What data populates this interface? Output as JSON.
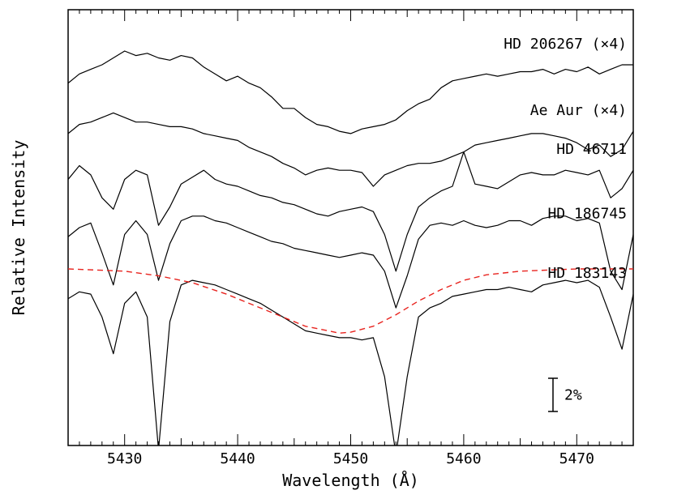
{
  "chart_data": {
    "type": "line",
    "xlabel": "Wavelength (Å)",
    "ylabel": "Relative Intensity",
    "xlim": [
      5425,
      5475
    ],
    "x_ticks": [
      5430,
      5440,
      5450,
      5460,
      5470
    ],
    "scale_bar_label": "2%",
    "series": [
      {
        "name": "HD 206267 (×4)",
        "color": "#000000",
        "points": [
          [
            5425,
            0.89
          ],
          [
            5426,
            0.91
          ],
          [
            5427,
            0.92
          ],
          [
            5428,
            0.93
          ],
          [
            5429,
            0.945
          ],
          [
            5430,
            0.96
          ],
          [
            5431,
            0.95
          ],
          [
            5432,
            0.955
          ],
          [
            5433,
            0.945
          ],
          [
            5434,
            0.94
          ],
          [
            5435,
            0.95
          ],
          [
            5436,
            0.945
          ],
          [
            5437,
            0.925
          ],
          [
            5438,
            0.91
          ],
          [
            5439,
            0.895
          ],
          [
            5440,
            0.905
          ],
          [
            5441,
            0.89
          ],
          [
            5442,
            0.88
          ],
          [
            5443,
            0.86
          ],
          [
            5444,
            0.835
          ],
          [
            5445,
            0.835
          ],
          [
            5446,
            0.815
          ],
          [
            5447,
            0.8
          ],
          [
            5448,
            0.795
          ],
          [
            5449,
            0.785
          ],
          [
            5450,
            0.78
          ],
          [
            5451,
            0.79
          ],
          [
            5452,
            0.795
          ],
          [
            5453,
            0.8
          ],
          [
            5454,
            0.81
          ],
          [
            5455,
            0.83
          ],
          [
            5456,
            0.845
          ],
          [
            5457,
            0.855
          ],
          [
            5458,
            0.88
          ],
          [
            5459,
            0.895
          ],
          [
            5460,
            0.9
          ],
          [
            5461,
            0.905
          ],
          [
            5462,
            0.91
          ],
          [
            5463,
            0.905
          ],
          [
            5464,
            0.91
          ],
          [
            5465,
            0.915
          ],
          [
            5466,
            0.915
          ],
          [
            5467,
            0.92
          ],
          [
            5468,
            0.91
          ],
          [
            5469,
            0.92
          ],
          [
            5470,
            0.915
          ],
          [
            5471,
            0.925
          ],
          [
            5472,
            0.91
          ],
          [
            5473,
            0.92
          ],
          [
            5474,
            0.93
          ],
          [
            5475,
            0.93
          ]
        ]
      },
      {
        "name": "Ae Aur (×4)",
        "color": "#000000",
        "points": [
          [
            5425,
            0.78
          ],
          [
            5426,
            0.8
          ],
          [
            5427,
            0.805
          ],
          [
            5428,
            0.815
          ],
          [
            5429,
            0.825
          ],
          [
            5430,
            0.815
          ],
          [
            5431,
            0.805
          ],
          [
            5432,
            0.805
          ],
          [
            5433,
            0.8
          ],
          [
            5434,
            0.795
          ],
          [
            5435,
            0.795
          ],
          [
            5436,
            0.79
          ],
          [
            5437,
            0.78
          ],
          [
            5438,
            0.775
          ],
          [
            5439,
            0.77
          ],
          [
            5440,
            0.765
          ],
          [
            5441,
            0.75
          ],
          [
            5442,
            0.74
          ],
          [
            5443,
            0.73
          ],
          [
            5444,
            0.715
          ],
          [
            5445,
            0.705
          ],
          [
            5446,
            0.69
          ],
          [
            5447,
            0.7
          ],
          [
            5448,
            0.705
          ],
          [
            5449,
            0.7
          ],
          [
            5450,
            0.7
          ],
          [
            5451,
            0.695
          ],
          [
            5452,
            0.665
          ],
          [
            5453,
            0.69
          ],
          [
            5454,
            0.7
          ],
          [
            5455,
            0.71
          ],
          [
            5456,
            0.715
          ],
          [
            5457,
            0.715
          ],
          [
            5458,
            0.72
          ],
          [
            5459,
            0.73
          ],
          [
            5460,
            0.74
          ],
          [
            5461,
            0.755
          ],
          [
            5462,
            0.76
          ],
          [
            5463,
            0.765
          ],
          [
            5464,
            0.77
          ],
          [
            5465,
            0.775
          ],
          [
            5466,
            0.78
          ],
          [
            5467,
            0.78
          ],
          [
            5468,
            0.775
          ],
          [
            5469,
            0.77
          ],
          [
            5470,
            0.76
          ],
          [
            5471,
            0.745
          ],
          [
            5472,
            0.755
          ],
          [
            5473,
            0.73
          ],
          [
            5474,
            0.745
          ],
          [
            5475,
            0.785
          ]
        ]
      },
      {
        "name": "HD 46711",
        "color": "#000000",
        "points": [
          [
            5425,
            0.68
          ],
          [
            5426,
            0.71
          ],
          [
            5427,
            0.69
          ],
          [
            5428,
            0.64
          ],
          [
            5429,
            0.615
          ],
          [
            5430,
            0.68
          ],
          [
            5431,
            0.7
          ],
          [
            5432,
            0.69
          ],
          [
            5433,
            0.58
          ],
          [
            5434,
            0.62
          ],
          [
            5435,
            0.67
          ],
          [
            5436,
            0.685
          ],
          [
            5437,
            0.7
          ],
          [
            5438,
            0.68
          ],
          [
            5439,
            0.67
          ],
          [
            5440,
            0.665
          ],
          [
            5441,
            0.655
          ],
          [
            5442,
            0.645
          ],
          [
            5443,
            0.64
          ],
          [
            5444,
            0.63
          ],
          [
            5445,
            0.625
          ],
          [
            5446,
            0.615
          ],
          [
            5447,
            0.605
          ],
          [
            5448,
            0.6
          ],
          [
            5449,
            0.61
          ],
          [
            5450,
            0.615
          ],
          [
            5451,
            0.62
          ],
          [
            5452,
            0.61
          ],
          [
            5453,
            0.56
          ],
          [
            5454,
            0.48
          ],
          [
            5455,
            0.56
          ],
          [
            5456,
            0.62
          ],
          [
            5457,
            0.64
          ],
          [
            5458,
            0.655
          ],
          [
            5459,
            0.665
          ],
          [
            5460,
            0.74
          ],
          [
            5461,
            0.67
          ],
          [
            5462,
            0.665
          ],
          [
            5463,
            0.66
          ],
          [
            5464,
            0.675
          ],
          [
            5465,
            0.69
          ],
          [
            5466,
            0.695
          ],
          [
            5467,
            0.69
          ],
          [
            5468,
            0.69
          ],
          [
            5469,
            0.7
          ],
          [
            5470,
            0.695
          ],
          [
            5471,
            0.69
          ],
          [
            5472,
            0.7
          ],
          [
            5473,
            0.64
          ],
          [
            5474,
            0.66
          ],
          [
            5475,
            0.7
          ]
        ]
      },
      {
        "name": "HD 186745",
        "color": "#000000",
        "points": [
          [
            5425,
            0.555
          ],
          [
            5426,
            0.575
          ],
          [
            5427,
            0.585
          ],
          [
            5428,
            0.52
          ],
          [
            5429,
            0.45
          ],
          [
            5430,
            0.56
          ],
          [
            5431,
            0.59
          ],
          [
            5432,
            0.56
          ],
          [
            5433,
            0.46
          ],
          [
            5434,
            0.54
          ],
          [
            5435,
            0.59
          ],
          [
            5436,
            0.6
          ],
          [
            5437,
            0.6
          ],
          [
            5438,
            0.59
          ],
          [
            5439,
            0.585
          ],
          [
            5440,
            0.575
          ],
          [
            5441,
            0.565
          ],
          [
            5442,
            0.555
          ],
          [
            5443,
            0.545
          ],
          [
            5444,
            0.54
          ],
          [
            5445,
            0.53
          ],
          [
            5446,
            0.525
          ],
          [
            5447,
            0.52
          ],
          [
            5448,
            0.515
          ],
          [
            5449,
            0.51
          ],
          [
            5450,
            0.515
          ],
          [
            5451,
            0.52
          ],
          [
            5452,
            0.515
          ],
          [
            5453,
            0.48
          ],
          [
            5454,
            0.4
          ],
          [
            5455,
            0.47
          ],
          [
            5456,
            0.55
          ],
          [
            5457,
            0.58
          ],
          [
            5458,
            0.585
          ],
          [
            5459,
            0.58
          ],
          [
            5460,
            0.59
          ],
          [
            5461,
            0.58
          ],
          [
            5462,
            0.575
          ],
          [
            5463,
            0.58
          ],
          [
            5464,
            0.59
          ],
          [
            5465,
            0.59
          ],
          [
            5466,
            0.58
          ],
          [
            5467,
            0.595
          ],
          [
            5468,
            0.6
          ],
          [
            5469,
            0.6
          ],
          [
            5470,
            0.59
          ],
          [
            5471,
            0.595
          ],
          [
            5472,
            0.585
          ],
          [
            5473,
            0.48
          ],
          [
            5474,
            0.44
          ],
          [
            5475,
            0.56
          ]
        ]
      },
      {
        "name": "HD 183143",
        "color": "#000000",
        "points": [
          [
            5425,
            0.42
          ],
          [
            5426,
            0.435
          ],
          [
            5427,
            0.43
          ],
          [
            5428,
            0.38
          ],
          [
            5429,
            0.3
          ],
          [
            5430,
            0.41
          ],
          [
            5431,
            0.435
          ],
          [
            5432,
            0.38
          ],
          [
            5433,
            0.09
          ],
          [
            5434,
            0.37
          ],
          [
            5435,
            0.45
          ],
          [
            5436,
            0.46
          ],
          [
            5437,
            0.455
          ],
          [
            5438,
            0.45
          ],
          [
            5439,
            0.44
          ],
          [
            5440,
            0.43
          ],
          [
            5441,
            0.42
          ],
          [
            5442,
            0.41
          ],
          [
            5443,
            0.395
          ],
          [
            5444,
            0.38
          ],
          [
            5445,
            0.365
          ],
          [
            5446,
            0.35
          ],
          [
            5447,
            0.345
          ],
          [
            5448,
            0.34
          ],
          [
            5449,
            0.335
          ],
          [
            5450,
            0.335
          ],
          [
            5451,
            0.33
          ],
          [
            5452,
            0.335
          ],
          [
            5453,
            0.25
          ],
          [
            5454,
            0.08
          ],
          [
            5455,
            0.25
          ],
          [
            5456,
            0.38
          ],
          [
            5457,
            0.4
          ],
          [
            5458,
            0.41
          ],
          [
            5459,
            0.425
          ],
          [
            5460,
            0.43
          ],
          [
            5461,
            0.435
          ],
          [
            5462,
            0.44
          ],
          [
            5463,
            0.44
          ],
          [
            5464,
            0.445
          ],
          [
            5465,
            0.44
          ],
          [
            5466,
            0.435
          ],
          [
            5467,
            0.45
          ],
          [
            5468,
            0.455
          ],
          [
            5469,
            0.46
          ],
          [
            5470,
            0.455
          ],
          [
            5471,
            0.46
          ],
          [
            5472,
            0.445
          ],
          [
            5473,
            0.38
          ],
          [
            5474,
            0.31
          ],
          [
            5475,
            0.43
          ]
        ]
      },
      {
        "name": "",
        "style": "dashed",
        "color": "#e8231e",
        "points": [
          [
            5425,
            0.485
          ],
          [
            5430,
            0.48
          ],
          [
            5433,
            0.47
          ],
          [
            5436,
            0.455
          ],
          [
            5439,
            0.43
          ],
          [
            5442,
            0.4
          ],
          [
            5444,
            0.38
          ],
          [
            5446,
            0.36
          ],
          [
            5448,
            0.35
          ],
          [
            5449,
            0.345
          ],
          [
            5450,
            0.347
          ],
          [
            5452,
            0.36
          ],
          [
            5454,
            0.385
          ],
          [
            5456,
            0.415
          ],
          [
            5458,
            0.44
          ],
          [
            5460,
            0.46
          ],
          [
            5462,
            0.472
          ],
          [
            5465,
            0.48
          ],
          [
            5470,
            0.485
          ],
          [
            5475,
            0.485
          ]
        ]
      }
    ],
    "ylim": [
      0.1,
      1.05
    ]
  }
}
